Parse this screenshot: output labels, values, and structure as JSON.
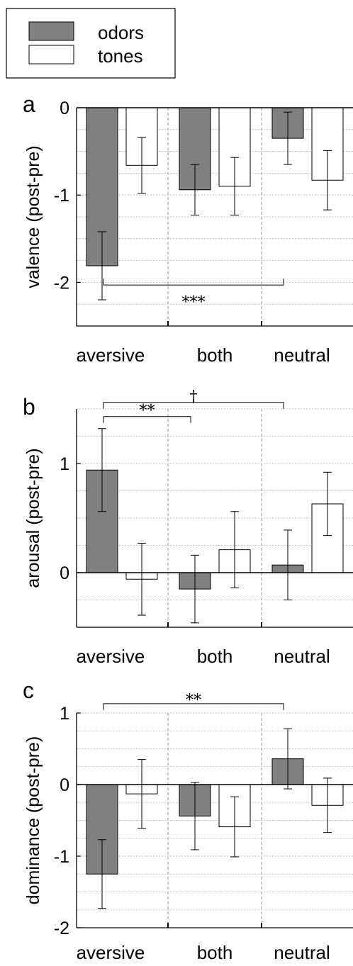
{
  "legend": {
    "entries": [
      {
        "label": "odors",
        "color": "#808080"
      },
      {
        "label": "tones",
        "color": "#ffffff"
      }
    ]
  },
  "colors": {
    "odors": "#808080",
    "tones": "#ffffff",
    "grid": "#b0b0b0",
    "separator": "#9a9a9a"
  },
  "chart_data": [
    {
      "panel": "a",
      "type": "bar",
      "ylabel": "valence (post-pre)",
      "categories": [
        "aversive",
        "both",
        "neutral"
      ],
      "ylim": [
        -2.5,
        0
      ],
      "yticks": [
        -2,
        -1,
        0
      ],
      "yticklabels": [
        "-2",
        "-1",
        "0"
      ],
      "minor_grid_step": 0.25,
      "series": [
        {
          "name": "odors",
          "values": [
            -1.81,
            -0.94,
            -0.35
          ],
          "errors": [
            0.39,
            0.29,
            0.3
          ]
        },
        {
          "name": "tones",
          "values": [
            -0.66,
            -0.9,
            -0.83
          ],
          "errors": [
            0.32,
            0.33,
            0.34
          ]
        }
      ],
      "significance": [
        {
          "from": 0,
          "to": 2,
          "label": "***",
          "level": -2.03,
          "label_level": -2.22
        }
      ]
    },
    {
      "panel": "b",
      "type": "bar",
      "ylabel": "arousal (post-pre)",
      "categories": [
        "aversive",
        "both",
        "neutral"
      ],
      "ylim": [
        -0.5,
        1.5
      ],
      "yticks": [
        0,
        1
      ],
      "yticklabels": [
        "0",
        "1"
      ],
      "minor_grid_step": 0.25,
      "series": [
        {
          "name": "odors",
          "values": [
            0.94,
            -0.15,
            0.07
          ],
          "errors": [
            0.38,
            0.31,
            0.32
          ]
        },
        {
          "name": "tones",
          "values": [
            -0.06,
            0.21,
            0.63
          ],
          "errors": [
            0.33,
            0.35,
            0.29
          ]
        }
      ],
      "significance": [
        {
          "from": 0,
          "to": 1,
          "label": "**",
          "level": 1.43,
          "label_level": 1.49
        },
        {
          "from": 0,
          "to": 2,
          "label": "†",
          "level": 1.56,
          "label_level": 1.62
        }
      ]
    },
    {
      "panel": "c",
      "type": "bar",
      "ylabel": "dominance (post-pre)",
      "categories": [
        "aversive",
        "both",
        "neutral"
      ],
      "ylim": [
        -2,
        1
      ],
      "yticks": [
        -2,
        -1,
        0,
        1
      ],
      "yticklabels": [
        "-2",
        "-1",
        "0",
        "1"
      ],
      "minor_grid_step": 0.25,
      "series": [
        {
          "name": "odors",
          "values": [
            -1.25,
            -0.44,
            0.36
          ],
          "errors": [
            0.48,
            0.47,
            0.42
          ]
        },
        {
          "name": "tones",
          "values": [
            -0.13,
            -0.59,
            -0.29
          ],
          "errors": [
            0.48,
            0.42,
            0.38
          ]
        }
      ],
      "significance": [
        {
          "from": 0,
          "to": 2,
          "label": "**",
          "level": 1.13,
          "label_level": 1.19
        }
      ]
    }
  ]
}
